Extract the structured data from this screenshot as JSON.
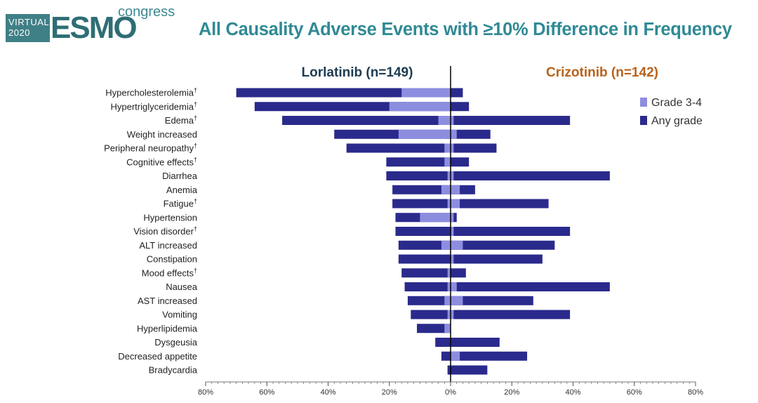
{
  "logo": {
    "virtual": "VIRTUAL",
    "year": "2020",
    "esmo": "ESMO",
    "congress": "congress"
  },
  "chart_data": {
    "type": "bar",
    "subtype": "diverging-horizontal",
    "title": "All Causality Adverse Events with ≥10% Difference in Frequency",
    "left_label": "Lorlatinib (n=149)",
    "right_label": "Crizotinib (n=142)",
    "left_label_color": "#1e3b50",
    "right_label_color": "#b8621b",
    "colors": {
      "any_grade": "#2a2a8c",
      "grade34": "#8d8de0"
    },
    "legend": [
      "Grade 3-4",
      "Any grade"
    ],
    "legend_position": "top-right",
    "xlim": [
      -80,
      80
    ],
    "xticks": [
      -80,
      -60,
      -40,
      -20,
      0,
      20,
      40,
      60,
      80
    ],
    "xtick_labels": [
      "80%",
      "60%",
      "40%",
      "20%",
      "0%",
      "20%",
      "40%",
      "60%",
      "80%"
    ],
    "categories": [
      {
        "name": "Hypercholesterolemia",
        "dagger": true
      },
      {
        "name": "Hypertriglyceridemia",
        "dagger": true
      },
      {
        "name": "Edema",
        "dagger": true
      },
      {
        "name": "Weight increased",
        "dagger": false
      },
      {
        "name": "Peripheral neuropathy",
        "dagger": true
      },
      {
        "name": "Cognitive effects",
        "dagger": true
      },
      {
        "name": "Diarrhea",
        "dagger": false
      },
      {
        "name": "Anemia",
        "dagger": false
      },
      {
        "name": "Fatigue",
        "dagger": true
      },
      {
        "name": "Hypertension",
        "dagger": false
      },
      {
        "name": "Vision disorder",
        "dagger": true
      },
      {
        "name": "ALT increased",
        "dagger": false
      },
      {
        "name": "Constipation",
        "dagger": false
      },
      {
        "name": "Mood effects",
        "dagger": true
      },
      {
        "name": "Nausea",
        "dagger": false
      },
      {
        "name": "AST increased",
        "dagger": false
      },
      {
        "name": "Vomiting",
        "dagger": false
      },
      {
        "name": "Hyperlipidemia",
        "dagger": false
      },
      {
        "name": "Dysgeusia",
        "dagger": false
      },
      {
        "name": "Decreased appetite",
        "dagger": false
      },
      {
        "name": "Bradycardia",
        "dagger": false
      }
    ],
    "series": [
      {
        "name": "Lorlatinib Any grade",
        "values": [
          70,
          64,
          55,
          38,
          34,
          21,
          21,
          19,
          19,
          18,
          18,
          17,
          17,
          16,
          15,
          14,
          13,
          11,
          5,
          3,
          1
        ]
      },
      {
        "name": "Lorlatinib Grade 3-4",
        "values": [
          16,
          20,
          4,
          17,
          2,
          2,
          1,
          3,
          1,
          10,
          0,
          3,
          0,
          1,
          1,
          2,
          1,
          2,
          0,
          0,
          0
        ]
      },
      {
        "name": "Crizotinib Any grade",
        "values": [
          4,
          6,
          39,
          13,
          15,
          6,
          52,
          8,
          32,
          2,
          39,
          34,
          30,
          5,
          52,
          27,
          39,
          0,
          16,
          25,
          12
        ]
      },
      {
        "name": "Crizotinib Grade 3-4",
        "values": [
          0,
          0,
          1,
          2,
          1,
          0,
          1,
          3,
          3,
          1,
          1,
          4,
          1,
          0,
          2,
          4,
          1,
          0,
          0,
          3,
          0
        ]
      }
    ]
  }
}
